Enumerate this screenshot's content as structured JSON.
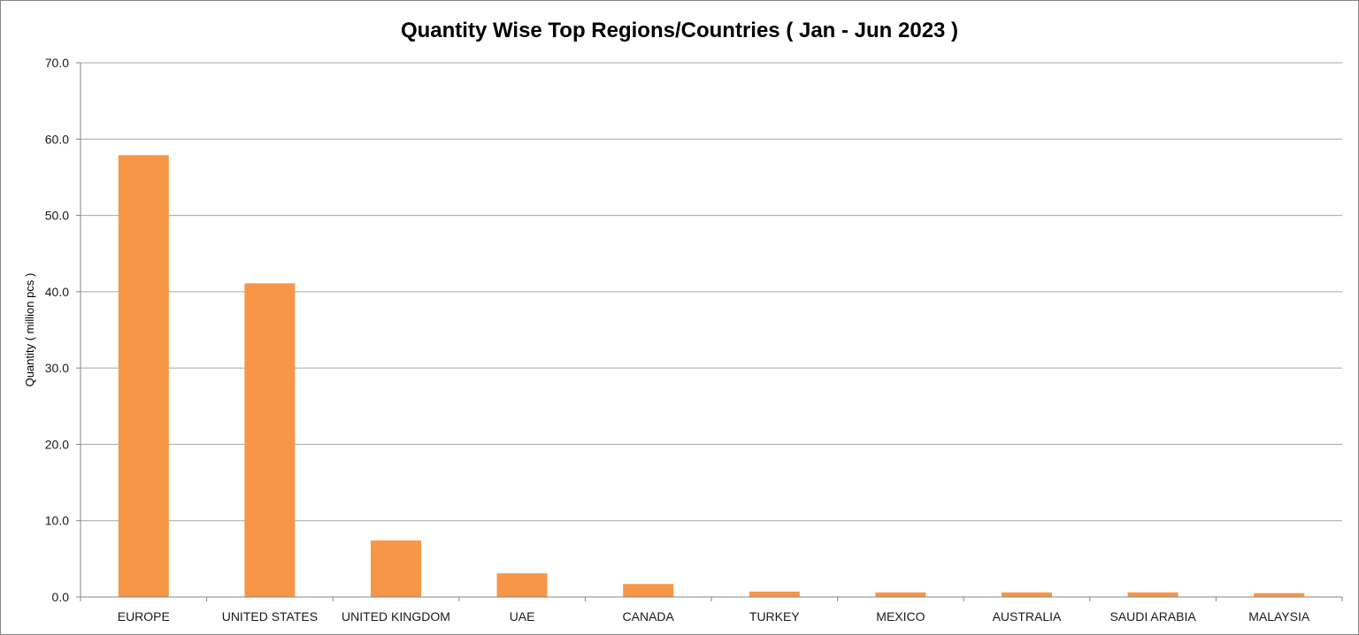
{
  "chart_data": {
    "type": "bar",
    "title": "Quantity Wise Top Regions/Countries ( Jan - Jun 2023 )",
    "xlabel": "",
    "ylabel": "Quantity ( million pcs )",
    "ylim": [
      0,
      70
    ],
    "yticks": [
      "0.0",
      "10.0",
      "20.0",
      "30.0",
      "40.0",
      "50.0",
      "60.0",
      "70.0"
    ],
    "grid": true,
    "legend": "none",
    "bar_color": "#F79646",
    "categories": [
      "EUROPE",
      "UNITED STATES",
      "UNITED KINGDOM",
      "UAE",
      "CANADA",
      "TURKEY",
      "MEXICO",
      "AUSTRALIA",
      "SAUDI ARABIA",
      "MALAYSIA"
    ],
    "values": [
      57.9,
      41.1,
      7.4,
      3.1,
      1.7,
      0.7,
      0.6,
      0.6,
      0.6,
      0.5
    ]
  }
}
